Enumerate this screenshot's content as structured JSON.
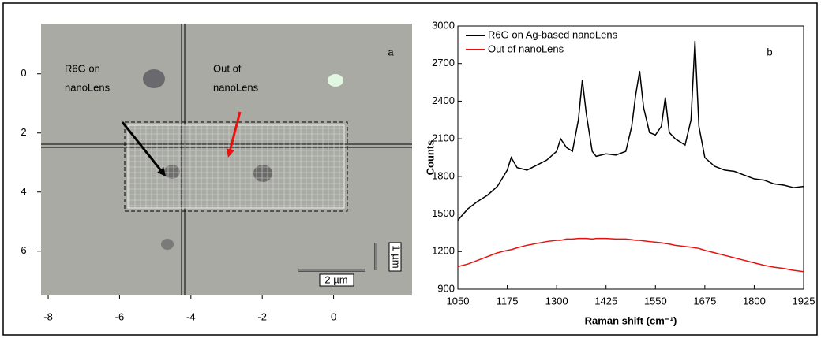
{
  "chart_data": [
    {
      "type": "image",
      "panel_label": "a",
      "xlim": [
        -8.2,
        2.2
      ],
      "ylim": [
        -1.7,
        7.5
      ],
      "y_inverted": true,
      "xticks": [
        -8,
        -6,
        -4,
        -2,
        0
      ],
      "yticks": [
        0,
        2,
        4,
        6
      ],
      "annotations": [
        {
          "text": [
            "R6G on",
            "nanoLens"
          ],
          "arrow_color": "#000000"
        },
        {
          "text": [
            "Out of",
            "nanoLens"
          ],
          "arrow_color": "#e8110f"
        }
      ],
      "scale_bars": [
        "2 µm",
        "1 µm"
      ]
    },
    {
      "type": "line",
      "panel_label": "b",
      "x_label": "Raman shift (cm⁻¹)",
      "y_label": "Counts",
      "xlim": [
        1050,
        1925
      ],
      "ylim": [
        900,
        3000
      ],
      "xticks": [
        1050,
        1175,
        1300,
        1425,
        1550,
        1675,
        1800,
        1925
      ],
      "yticks": [
        900,
        1200,
        1500,
        1800,
        2100,
        2400,
        2700,
        3000
      ],
      "legend": "upper left",
      "x": [
        1050,
        1075,
        1100,
        1125,
        1150,
        1175,
        1185,
        1200,
        1225,
        1250,
        1275,
        1300,
        1310,
        1325,
        1340,
        1355,
        1365,
        1375,
        1390,
        1400,
        1425,
        1450,
        1475,
        1490,
        1500,
        1510,
        1520,
        1535,
        1550,
        1565,
        1575,
        1585,
        1600,
        1625,
        1640,
        1650,
        1660,
        1675,
        1700,
        1725,
        1750,
        1775,
        1800,
        1825,
        1850,
        1875,
        1900,
        1925
      ],
      "series": [
        {
          "name": "R6G on Ag-based nanoLens",
          "color": "#000000",
          "values": [
            1450,
            1540,
            1600,
            1650,
            1720,
            1850,
            1950,
            1870,
            1850,
            1890,
            1930,
            2000,
            2100,
            2030,
            2000,
            2250,
            2570,
            2300,
            2000,
            1960,
            1980,
            1970,
            2000,
            2200,
            2450,
            2640,
            2350,
            2150,
            2130,
            2200,
            2430,
            2150,
            2100,
            2050,
            2250,
            2880,
            2200,
            1950,
            1880,
            1850,
            1840,
            1810,
            1780,
            1770,
            1740,
            1730,
            1710,
            1720
          ]
        },
        {
          "name": "Out of nanoLens",
          "color": "#e8110f",
          "values": [
            1080,
            1100,
            1130,
            1160,
            1190,
            1210,
            1215,
            1230,
            1250,
            1265,
            1280,
            1290,
            1290,
            1300,
            1300,
            1305,
            1305,
            1305,
            1300,
            1305,
            1305,
            1300,
            1300,
            1295,
            1290,
            1290,
            1285,
            1280,
            1275,
            1270,
            1265,
            1260,
            1250,
            1240,
            1235,
            1230,
            1225,
            1210,
            1190,
            1170,
            1150,
            1130,
            1110,
            1090,
            1075,
            1065,
            1050,
            1040
          ]
        }
      ]
    }
  ]
}
